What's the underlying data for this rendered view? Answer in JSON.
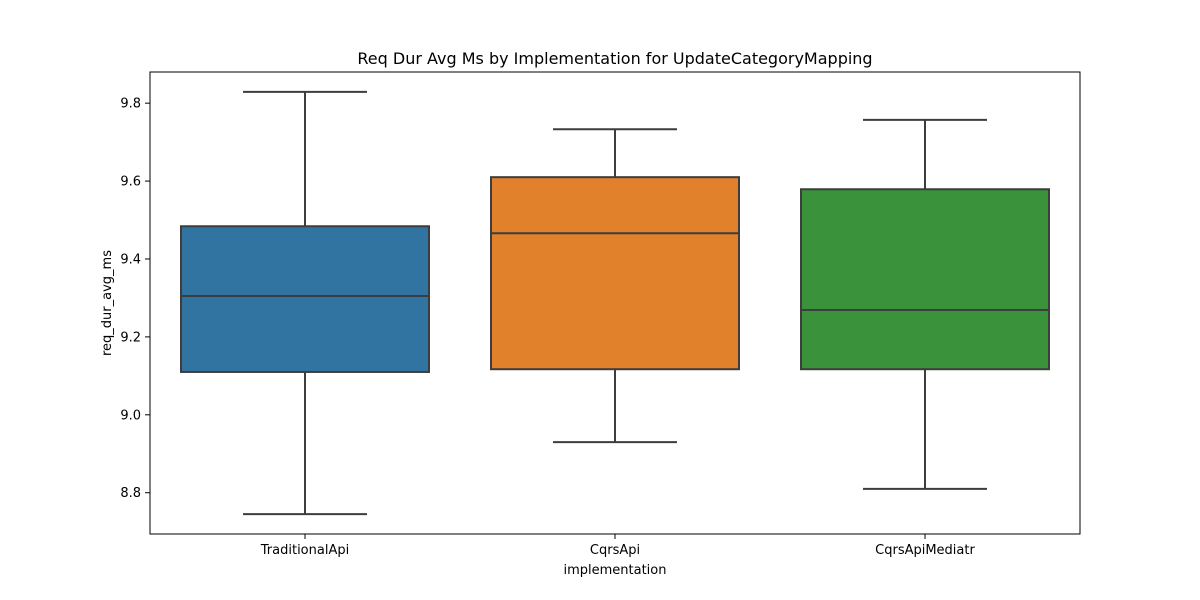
{
  "chart_data": {
    "type": "box",
    "title": "Req Dur Avg Ms by Implementation for UpdateCategoryMapping",
    "xlabel": "implementation",
    "ylabel": "req_dur_avg_ms",
    "ylim": [
      8.694,
      9.88
    ],
    "yticks": [
      8.8,
      9.0,
      9.2,
      9.4,
      9.6,
      9.8
    ],
    "ytick_labels": [
      "8.8",
      "9.0",
      "9.2",
      "9.4",
      "9.6",
      "9.8"
    ],
    "categories": [
      "TraditionalApi",
      "CqrsApi",
      "CqrsApiMediatr"
    ],
    "boxes": [
      {
        "category": "TraditionalApi",
        "whisker_low": 8.745,
        "q1": 9.11,
        "median": 9.305,
        "q3": 9.484,
        "whisker_high": 9.829,
        "color": "#3274a1"
      },
      {
        "category": "CqrsApi",
        "whisker_low": 8.93,
        "q1": 9.117,
        "median": 9.466,
        "q3": 9.61,
        "whisker_high": 9.733,
        "color": "#e1812c"
      },
      {
        "category": "CqrsApiMediatr",
        "whisker_low": 8.81,
        "q1": 9.117,
        "median": 9.269,
        "q3": 9.579,
        "whisker_high": 9.757,
        "color": "#3a923a"
      }
    ],
    "line_color": "#3d3d3d",
    "grid": false,
    "legend": "none"
  }
}
